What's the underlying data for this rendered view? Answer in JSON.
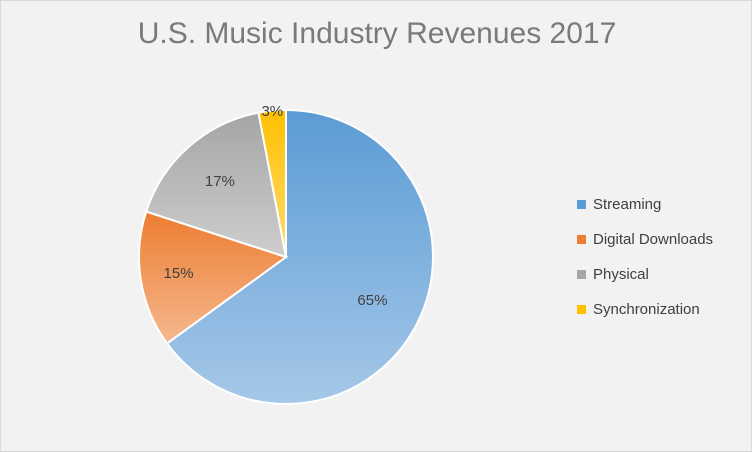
{
  "chart_data": {
    "type": "pie",
    "title": "U.S. Music Industry Revenues 2017",
    "categories": [
      "Streaming",
      "Digital Downloads",
      "Physical",
      "Synchronization"
    ],
    "values": [
      65,
      15,
      17,
      3
    ],
    "labels": [
      "65%",
      "15%",
      "17%",
      "3%"
    ],
    "colors": [
      "#5b9bd5",
      "#ed7d31",
      "#a5a5a5",
      "#ffc000"
    ],
    "start_angle_deg": 0,
    "direction": "clockwise",
    "legend_position": "right"
  }
}
